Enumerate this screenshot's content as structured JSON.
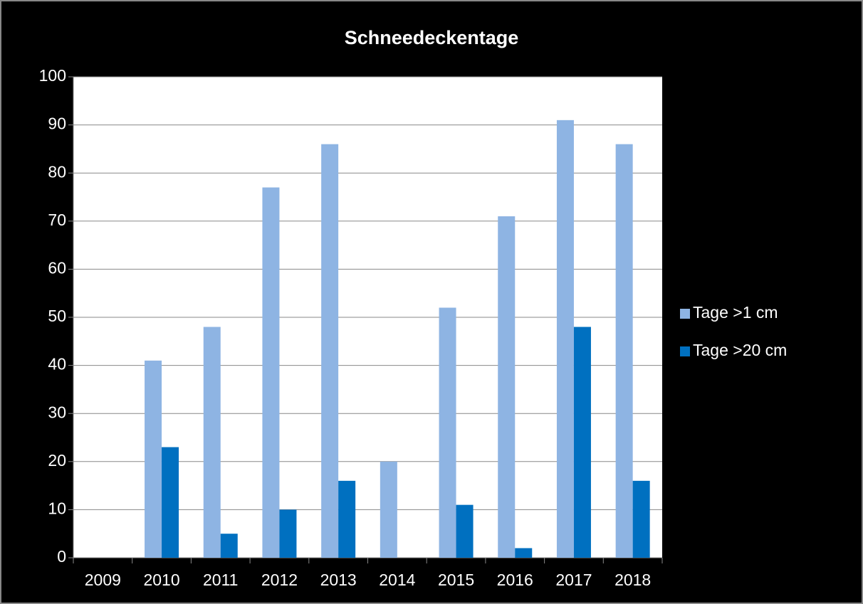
{
  "chart_data": {
    "type": "bar",
    "title": "Schneedeckentage",
    "categories": [
      "2009",
      "2010",
      "2011",
      "2012",
      "2013",
      "2014",
      "2015",
      "2016",
      "2017",
      "2018"
    ],
    "series": [
      {
        "name": "Tage >1 cm",
        "color": "#8eb4e3",
        "values": [
          0,
          41,
          48,
          77,
          86,
          20,
          52,
          71,
          91,
          86
        ]
      },
      {
        "name": "Tage >20 cm",
        "color": "#0070c0",
        "values": [
          0,
          23,
          5,
          10,
          16,
          0,
          11,
          2,
          48,
          16
        ]
      }
    ],
    "ylim": [
      0,
      100
    ],
    "yticks": [
      0,
      10,
      20,
      30,
      40,
      50,
      60,
      70,
      80,
      90,
      100
    ],
    "grid": true,
    "legend": "right"
  }
}
